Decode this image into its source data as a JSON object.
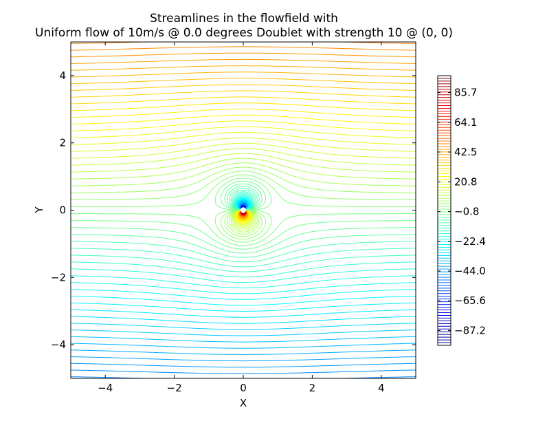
{
  "chart_data": {
    "type": "contour",
    "title_line1": "Streamlines in the flowfield with",
    "title_line2": "Uniform flow of 10m/s @ 0.0 degrees Doublet with strength 10 @ (0, 0)",
    "xlabel": "X",
    "ylabel": "Y",
    "xlim": [
      -5,
      5
    ],
    "ylim": [
      -5,
      5
    ],
    "xticks": [
      -4,
      -2,
      0,
      2,
      4
    ],
    "yticks": [
      -4,
      -2,
      0,
      2,
      4
    ],
    "xtick_labels": [
      "−4",
      "−2",
      "0",
      "2",
      "4"
    ],
    "ytick_labels": [
      "−4",
      "−2",
      "0",
      "2",
      "4"
    ],
    "flow": {
      "uniform_speed": 10,
      "angle_deg": 0.0,
      "doublet_strength": 10,
      "doublet_x": 0,
      "doublet_y": 0
    },
    "contour_levels": {
      "min": -98,
      "max": 98,
      "count": 100
    },
    "colormap": "jet",
    "colorbar": {
      "vmin": -98,
      "vmax": 98,
      "ticks": [
        85.7,
        64.1,
        42.5,
        20.8,
        -0.8,
        -22.4,
        -44.0,
        -65.6,
        -87.2
      ],
      "tick_labels": [
        "85.7",
        "64.1",
        "42.5",
        "20.8",
        "−0.8",
        "−22.4",
        "−44.0",
        "−65.6",
        "−87.2"
      ]
    }
  }
}
